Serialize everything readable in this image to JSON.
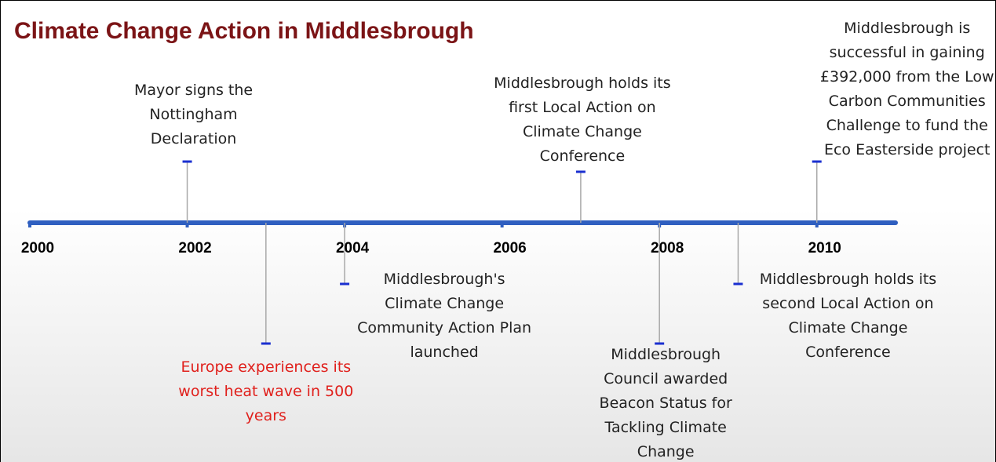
{
  "chart_data": {
    "type": "timeline",
    "title": "Climate Change Action in Middlesbrough",
    "xlim": [
      2000,
      2011
    ],
    "xticks": [
      2000,
      2002,
      2004,
      2006,
      2008,
      2010
    ],
    "axis_color": "#2f5fc0",
    "events": [
      {
        "x": 2002,
        "label": "Mayor signs the Nottingham Declaration",
        "color": "#222222"
      },
      {
        "x": 2003,
        "label": "Europe experiences its worst heat wave in 500 years",
        "color": "#e0201c"
      },
      {
        "x": 2004,
        "label": "Middlesbrough's Climate Change Community Action Plan launched",
        "color": "#222222"
      },
      {
        "x": 2007,
        "label": "Middlesbrough holds its first Local Action on Climate Change Conference",
        "color": "#222222"
      },
      {
        "x": 2008,
        "label": "Middlesbrough Council awarded Beacon Status for Tackling Climate Change",
        "color": "#222222"
      },
      {
        "x": 2009,
        "label": "Middlesbrough holds its second Local Action on Climate Change Conference",
        "color": "#222222"
      },
      {
        "x": 2010,
        "label": "Middlesbrough is successful in gaining £392,000 from the Low Carbon Communities Challenge to fund the Eco Easterside project",
        "color": "#222222"
      }
    ]
  }
}
